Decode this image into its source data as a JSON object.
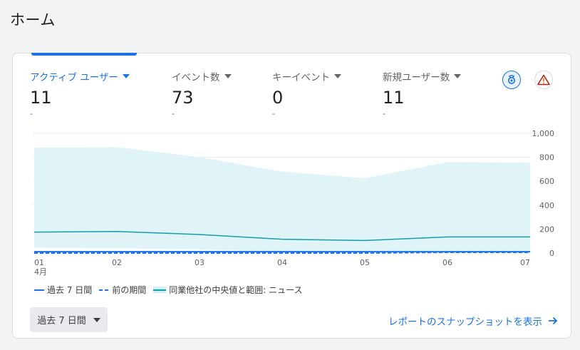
{
  "page": {
    "title": "ホーム"
  },
  "metrics": [
    {
      "label": "アクティブ ユーザー",
      "value": "11",
      "change": "-"
    },
    {
      "label": "イベント数",
      "value": "73",
      "change": "-"
    },
    {
      "label": "キーイベント",
      "value": "0",
      "change": "-"
    },
    {
      "label": "新規ユーザー数",
      "value": "11",
      "change": "-"
    }
  ],
  "icons": {
    "insight": "insights-icon",
    "alert": "warning-icon"
  },
  "chart_data": {
    "type": "area",
    "x": [
      "01",
      "02",
      "03",
      "04",
      "05",
      "06",
      "07"
    ],
    "x_sublabel": "4月",
    "y_ticks": [
      "1,000",
      "800",
      "600",
      "400",
      "200",
      "0"
    ],
    "ylim": [
      0,
      1000
    ],
    "series": [
      {
        "name": "過去 7 日間",
        "type": "line",
        "values": [
          11,
          11,
          11,
          11,
          11,
          11,
          11
        ],
        "color": "#1a73e8"
      },
      {
        "name": "前の期間",
        "type": "line-dashed",
        "values": [
          0,
          0,
          0,
          0,
          0,
          6,
          6
        ],
        "color": "#1a73e8"
      },
      {
        "name": "同業他社の中央値と範囲: ニュース",
        "type": "band",
        "median": [
          175,
          180,
          155,
          115,
          105,
          135,
          135
        ],
        "upper": [
          880,
          885,
          800,
          680,
          625,
          760,
          755
        ],
        "lower": [
          45,
          40,
          30,
          10,
          5,
          15,
          15
        ],
        "color": "#129eaf",
        "band_color": "#e0f4f8"
      }
    ],
    "grid": true,
    "legend_position": "bottom-left"
  },
  "legend": [
    {
      "label": "過去 7 日間"
    },
    {
      "label": "前の期間"
    },
    {
      "label": "同業他社の中央値と範囲: ニュース"
    }
  ],
  "footer": {
    "date_range": "過去 7 日間",
    "snapshot_link": "レポートのスナップショットを表示"
  }
}
